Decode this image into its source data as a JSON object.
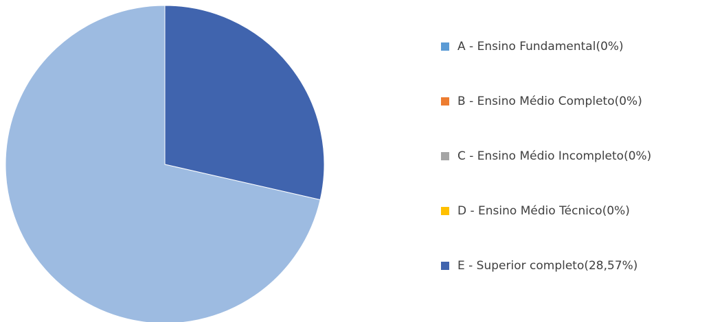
{
  "chart_data": {
    "type": "pie",
    "categories": [
      "A - Ensino Fundamental(0%)",
      "B - Ensino Médio Completo(0%)",
      "C - Ensino Médio Incompleto(0%)",
      "D - Ensino Médio Técnico(0%)",
      "E - Superior completo(28,57%)",
      null
    ],
    "values": [
      0,
      0,
      0,
      0,
      28.57,
      71.43
    ],
    "colors": [
      "#5b9bd5",
      "#ed7d31",
      "#a5a5a5",
      "#ffc000",
      "#4064ae",
      "#9dbbe1"
    ],
    "legend": "right"
  }
}
